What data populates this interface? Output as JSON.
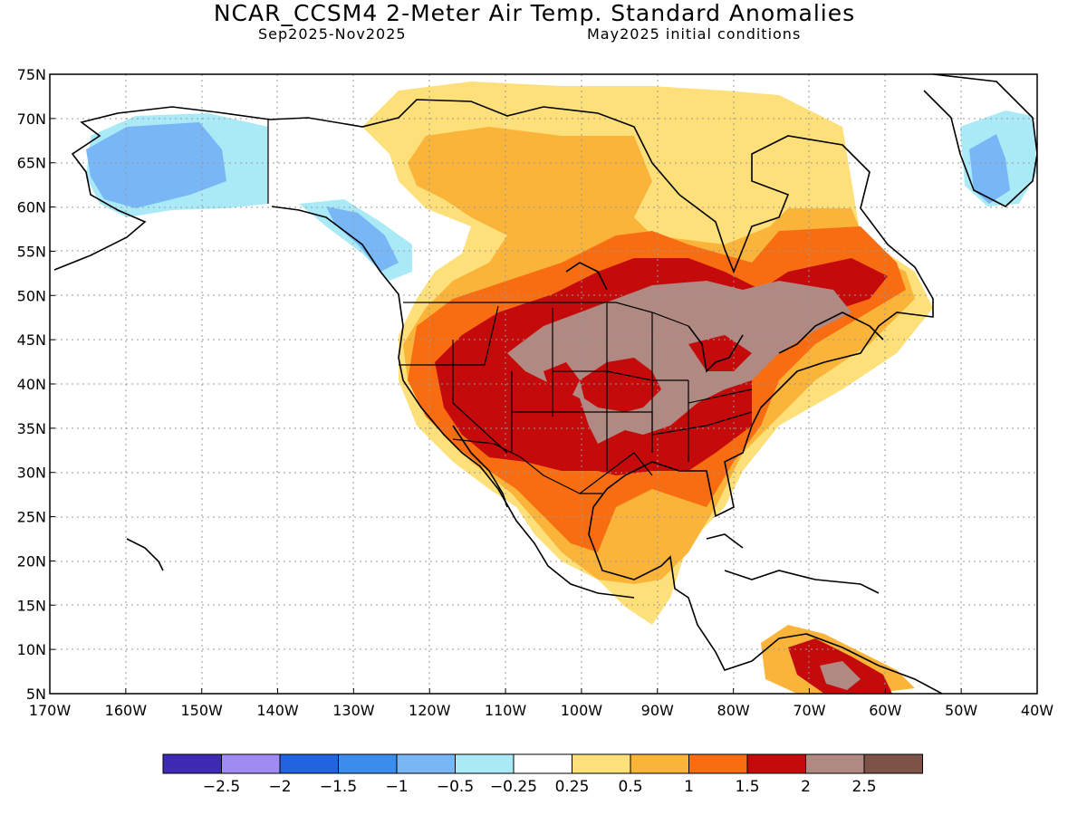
{
  "title": "NCAR_CCSM4 2-Meter Air Temp. Standard Anomalies",
  "subtitle_left": "Sep2025-Nov2025",
  "subtitle_right": "May2025 initial conditions",
  "lat_labels": [
    "75N",
    "70N",
    "65N",
    "60N",
    "55N",
    "50N",
    "45N",
    "40N",
    "35N",
    "30N",
    "25N",
    "20N",
    "15N",
    "10N",
    "5N"
  ],
  "lon_labels": [
    "170W",
    "160W",
    "150W",
    "140W",
    "130W",
    "120W",
    "110W",
    "100W",
    "90W",
    "80W",
    "70W",
    "60W",
    "50W",
    "40W"
  ],
  "colorbar": {
    "colors": [
      "#3d2bb5",
      "#9f8bf2",
      "#2064e0",
      "#3a8ced",
      "#78b6f5",
      "#aaeaf7",
      "#ffffff",
      "#fde07a",
      "#fbb43a",
      "#f86d12",
      "#c40a0a",
      "#b08982",
      "#7d5347"
    ],
    "labels": [
      "-2.5",
      "-2",
      "-1.5",
      "-1",
      "-0.5",
      "-0.25",
      "0.25",
      "0.5",
      "1",
      "1.5",
      "2",
      "2.5"
    ]
  }
}
